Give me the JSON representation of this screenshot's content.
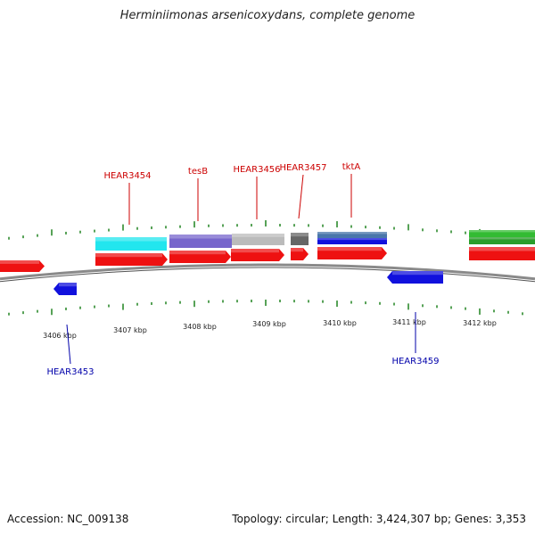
{
  "title": "Herminiimonas arsenicoxydans, complete genome",
  "footer": {
    "accession": "Accession: NC_009138",
    "summary": "Topology: circular; Length: 3,424,307 bp; Genes: 3,353"
  },
  "colors": {
    "backbone": "#8a8a8a",
    "tick": "#2e8b2e",
    "label_top": "#cc0000",
    "label_bottom": "#0000aa",
    "red_gene": "#ee1111",
    "blue_gene": "#1111dd",
    "cyan_gene": "#22e6ee",
    "purple_gene": "#7766cc",
    "grey_gene": "#bbbbbb",
    "darkgrey_gene": "#666666",
    "steelblue_gene": "#4a77aa",
    "green_gene": "#33bb33"
  },
  "scale": {
    "labels": [
      "3406 kbp",
      "3407 kbp",
      "3408 kbp",
      "3409 kbp",
      "3410 kbp",
      "3411 kbp",
      "3412 kbp"
    ]
  },
  "gene_labels_top": [
    "HEAR3454",
    "tesB",
    "HEAR3456",
    "HEAR3457",
    "tktA"
  ],
  "gene_labels_bottom": [
    "HEAR3453",
    "HEAR3459"
  ]
}
